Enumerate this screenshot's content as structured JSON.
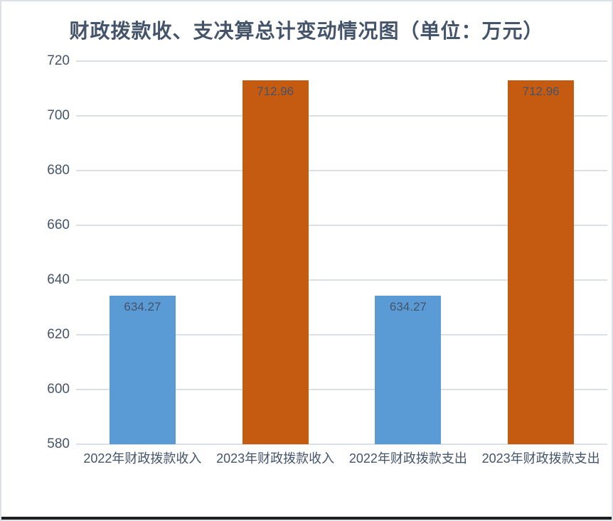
{
  "chart_data": {
    "type": "bar",
    "title": "财政拨款收、支决算总计变动情况图（单位：万元）",
    "categories": [
      "2022年财政拨款收入",
      "2023年财政拨款收入",
      "2022年财政拨款支出",
      "2023年财政拨款支出"
    ],
    "values": [
      634.27,
      712.96,
      634.27,
      712.96
    ],
    "data_labels": [
      "634.27",
      "712.96",
      "634.27",
      "712.96"
    ],
    "bar_colors": [
      "#5B9BD5",
      "#C55A11",
      "#5B9BD5",
      "#C55A11"
    ],
    "ylim": [
      580,
      720
    ],
    "ytick_step": 20,
    "ytick_labels": [
      "580",
      "600",
      "620",
      "640",
      "660",
      "680",
      "700",
      "720"
    ],
    "xlabel": "",
    "ylabel": "",
    "grid": true,
    "legend": "none"
  },
  "colors": {
    "series_blue": "#5B9BD5",
    "series_orange": "#C55A11",
    "title_text": "#44546A",
    "axis_text": "#44546A",
    "data_label_text": "#44546A",
    "gridline": "#DBE0E6",
    "frame_border": "#DCE1E7",
    "bottom_bar": "#1E1E1E",
    "background": "#FFFFFF"
  }
}
